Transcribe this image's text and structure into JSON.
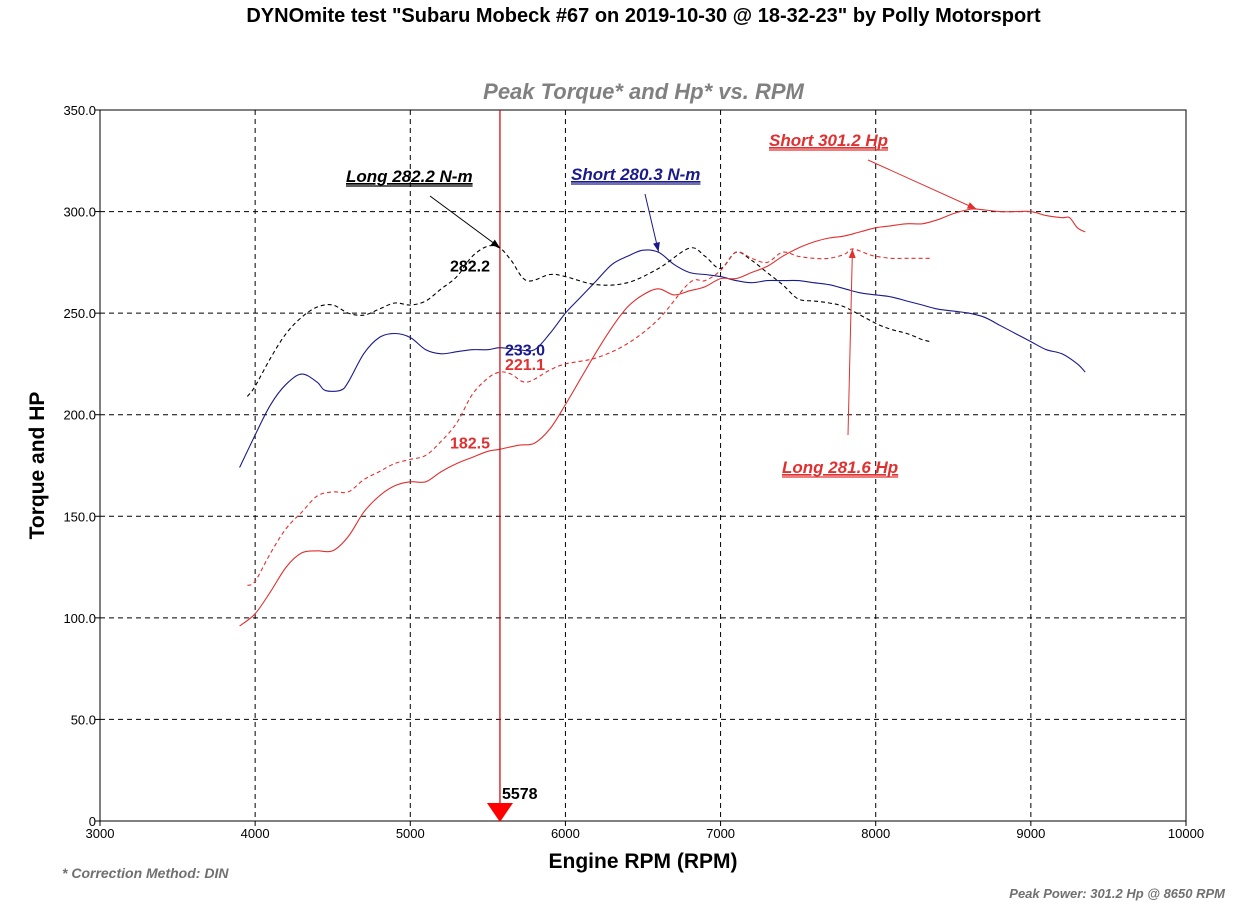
{
  "title": "DYNOmite test \"Subaru Mobeck #67 on 2019-10-30 @ 18-32-23\" by Polly Motorsport",
  "footer_left": "* Correction Method: DIN",
  "footer_right": "Peak Power: 301.2 Hp @ 8650 RPM",
  "chart_data": {
    "type": "line",
    "title": "Peak Torque* and Hp* vs. RPM",
    "xlabel": "Engine RPM (RPM)",
    "ylabel": "Torque and HP",
    "xlim": [
      3000,
      10000
    ],
    "ylim": [
      0,
      350
    ],
    "x_ticks": [
      3000,
      4000,
      5000,
      6000,
      7000,
      8000,
      9000,
      10000
    ],
    "y_ticks": [
      0,
      50,
      100,
      150,
      200,
      250,
      300,
      350
    ],
    "y_tick_labels": [
      "0",
      "50.0",
      "100.0",
      "150.0",
      "200.0",
      "250.0",
      "300.0",
      "350.0"
    ],
    "grid": true,
    "marker_rpm": 5578,
    "marker_label": "5578",
    "colors": {
      "torque_short": "#1a1a8c",
      "torque_long": "#000000",
      "hp_short": "#e03030",
      "hp_long": "#e03030",
      "marker": "#cc0000"
    },
    "series": [
      {
        "name": "Short torque",
        "unit": "N-m",
        "dash": false,
        "color_key": "torque_short",
        "points": [
          [
            3900,
            174
          ],
          [
            4000,
            190
          ],
          [
            4100,
            205
          ],
          [
            4200,
            215
          ],
          [
            4300,
            220
          ],
          [
            4400,
            216
          ],
          [
            4450,
            212
          ],
          [
            4550,
            212
          ],
          [
            4600,
            216
          ],
          [
            4700,
            230
          ],
          [
            4800,
            238
          ],
          [
            4900,
            240
          ],
          [
            5000,
            238
          ],
          [
            5100,
            232
          ],
          [
            5200,
            230
          ],
          [
            5300,
            231
          ],
          [
            5400,
            232
          ],
          [
            5500,
            232
          ],
          [
            5578,
            233
          ],
          [
            5700,
            232
          ],
          [
            5800,
            232
          ],
          [
            5900,
            240
          ],
          [
            6000,
            250
          ],
          [
            6100,
            258
          ],
          [
            6200,
            266
          ],
          [
            6300,
            274
          ],
          [
            6400,
            278
          ],
          [
            6500,
            281
          ],
          [
            6600,
            280
          ],
          [
            6700,
            274
          ],
          [
            6800,
            270
          ],
          [
            6900,
            269
          ],
          [
            7000,
            268
          ],
          [
            7100,
            266
          ],
          [
            7200,
            265
          ],
          [
            7300,
            266
          ],
          [
            7400,
            266
          ],
          [
            7500,
            266
          ],
          [
            7600,
            265
          ],
          [
            7700,
            264
          ],
          [
            7800,
            262
          ],
          [
            7900,
            260
          ],
          [
            8000,
            259
          ],
          [
            8100,
            258
          ],
          [
            8200,
            256
          ],
          [
            8300,
            254
          ],
          [
            8400,
            252
          ],
          [
            8500,
            251
          ],
          [
            8600,
            250
          ],
          [
            8700,
            248
          ],
          [
            8800,
            244
          ],
          [
            8900,
            240
          ],
          [
            9000,
            236
          ],
          [
            9100,
            232
          ],
          [
            9200,
            230
          ],
          [
            9300,
            225
          ],
          [
            9350,
            221
          ]
        ]
      },
      {
        "name": "Long torque",
        "unit": "N-m",
        "dash": true,
        "color_key": "torque_long",
        "points": [
          [
            3950,
            209
          ],
          [
            4000,
            214
          ],
          [
            4100,
            228
          ],
          [
            4200,
            240
          ],
          [
            4300,
            248
          ],
          [
            4400,
            253
          ],
          [
            4500,
            254
          ],
          [
            4600,
            250
          ],
          [
            4700,
            249
          ],
          [
            4800,
            252
          ],
          [
            4900,
            255
          ],
          [
            5000,
            254
          ],
          [
            5100,
            256
          ],
          [
            5200,
            262
          ],
          [
            5300,
            268
          ],
          [
            5400,
            278
          ],
          [
            5500,
            283
          ],
          [
            5578,
            282
          ],
          [
            5650,
            276
          ],
          [
            5750,
            266
          ],
          [
            5900,
            269
          ],
          [
            6000,
            268
          ],
          [
            6200,
            264
          ],
          [
            6400,
            265
          ],
          [
            6600,
            272
          ],
          [
            6800,
            282
          ],
          [
            6900,
            278
          ],
          [
            7000,
            272
          ],
          [
            7100,
            280
          ],
          [
            7200,
            276
          ],
          [
            7300,
            270
          ],
          [
            7400,
            264
          ],
          [
            7500,
            257
          ],
          [
            7600,
            256
          ],
          [
            7700,
            255
          ],
          [
            7800,
            253
          ],
          [
            8000,
            245
          ],
          [
            8100,
            242
          ],
          [
            8200,
            240
          ],
          [
            8300,
            237
          ],
          [
            8350,
            236
          ]
        ]
      },
      {
        "name": "Short power",
        "unit": "Hp",
        "dash": false,
        "color_key": "hp_short",
        "points": [
          [
            3900,
            96
          ],
          [
            4000,
            102
          ],
          [
            4100,
            113
          ],
          [
            4200,
            125
          ],
          [
            4300,
            132
          ],
          [
            4400,
            133
          ],
          [
            4500,
            133
          ],
          [
            4600,
            140
          ],
          [
            4700,
            152
          ],
          [
            4800,
            160
          ],
          [
            4900,
            165
          ],
          [
            5000,
            167
          ],
          [
            5100,
            167
          ],
          [
            5200,
            172
          ],
          [
            5300,
            176
          ],
          [
            5400,
            179
          ],
          [
            5500,
            182
          ],
          [
            5578,
            183
          ],
          [
            5700,
            185
          ],
          [
            5800,
            186
          ],
          [
            5900,
            193
          ],
          [
            6000,
            205
          ],
          [
            6100,
            218
          ],
          [
            6200,
            231
          ],
          [
            6300,
            243
          ],
          [
            6400,
            253
          ],
          [
            6500,
            259
          ],
          [
            6600,
            262
          ],
          [
            6700,
            259
          ],
          [
            6800,
            261
          ],
          [
            6900,
            263
          ],
          [
            7000,
            267
          ],
          [
            7100,
            267
          ],
          [
            7200,
            270
          ],
          [
            7300,
            273
          ],
          [
            7400,
            278
          ],
          [
            7500,
            282
          ],
          [
            7600,
            285
          ],
          [
            7700,
            287
          ],
          [
            7800,
            288
          ],
          [
            7900,
            290
          ],
          [
            8000,
            292
          ],
          [
            8100,
            293
          ],
          [
            8200,
            294
          ],
          [
            8300,
            294
          ],
          [
            8400,
            296
          ],
          [
            8500,
            299
          ],
          [
            8600,
            301
          ],
          [
            8650,
            301.2
          ],
          [
            8800,
            300
          ],
          [
            8900,
            300
          ],
          [
            9000,
            300
          ],
          [
            9100,
            298
          ],
          [
            9200,
            297
          ],
          [
            9250,
            297
          ],
          [
            9300,
            292
          ],
          [
            9350,
            290
          ]
        ]
      },
      {
        "name": "Long power",
        "unit": "Hp",
        "dash": true,
        "color_key": "hp_long",
        "points": [
          [
            3950,
            116
          ],
          [
            4000,
            118
          ],
          [
            4100,
            132
          ],
          [
            4200,
            144
          ],
          [
            4300,
            152
          ],
          [
            4400,
            160
          ],
          [
            4500,
            162
          ],
          [
            4600,
            162
          ],
          [
            4700,
            168
          ],
          [
            4800,
            172
          ],
          [
            4900,
            176
          ],
          [
            5000,
            178
          ],
          [
            5100,
            180
          ],
          [
            5200,
            187
          ],
          [
            5300,
            196
          ],
          [
            5400,
            210
          ],
          [
            5500,
            218
          ],
          [
            5578,
            221
          ],
          [
            5650,
            220
          ],
          [
            5750,
            216
          ],
          [
            5900,
            222
          ],
          [
            6000,
            225
          ],
          [
            6200,
            228
          ],
          [
            6400,
            235
          ],
          [
            6600,
            247
          ],
          [
            6800,
            265
          ],
          [
            6900,
            266
          ],
          [
            7000,
            271
          ],
          [
            7100,
            280
          ],
          [
            7200,
            277
          ],
          [
            7300,
            275
          ],
          [
            7400,
            280
          ],
          [
            7500,
            278
          ],
          [
            7600,
            277
          ],
          [
            7700,
            277
          ],
          [
            7800,
            279
          ],
          [
            7850,
            281.6
          ],
          [
            7950,
            279
          ],
          [
            8000,
            278
          ],
          [
            8100,
            277
          ],
          [
            8200,
            277
          ],
          [
            8300,
            277
          ],
          [
            8350,
            277
          ]
        ]
      }
    ],
    "point_labels": [
      {
        "text": "282.2",
        "x": 5578,
        "y": 282.2,
        "color_key": "torque_long"
      },
      {
        "text": "233.0",
        "x": 5578,
        "y": 233.0,
        "color_key": "torque_short"
      },
      {
        "text": "221.1",
        "x": 5578,
        "y": 221.1,
        "color_key": "hp_long"
      },
      {
        "text": "182.5",
        "x": 5578,
        "y": 182.5,
        "color_key": "hp_short"
      }
    ],
    "annotations": [
      {
        "text": "Long 282.2 N-m",
        "color_key": "torque_long",
        "target_x": 5578,
        "target_y": 282.2
      },
      {
        "text": "Short 280.3 N-m",
        "color_key": "torque_short",
        "target_x": 6600,
        "target_y": 280.3
      },
      {
        "text": "Short 301.2 Hp",
        "color_key": "hp_short",
        "target_x": 8650,
        "target_y": 301.2
      },
      {
        "text": "Long 281.6 Hp",
        "color_key": "hp_long",
        "target_x": 7850,
        "target_y": 281.6
      }
    ]
  }
}
